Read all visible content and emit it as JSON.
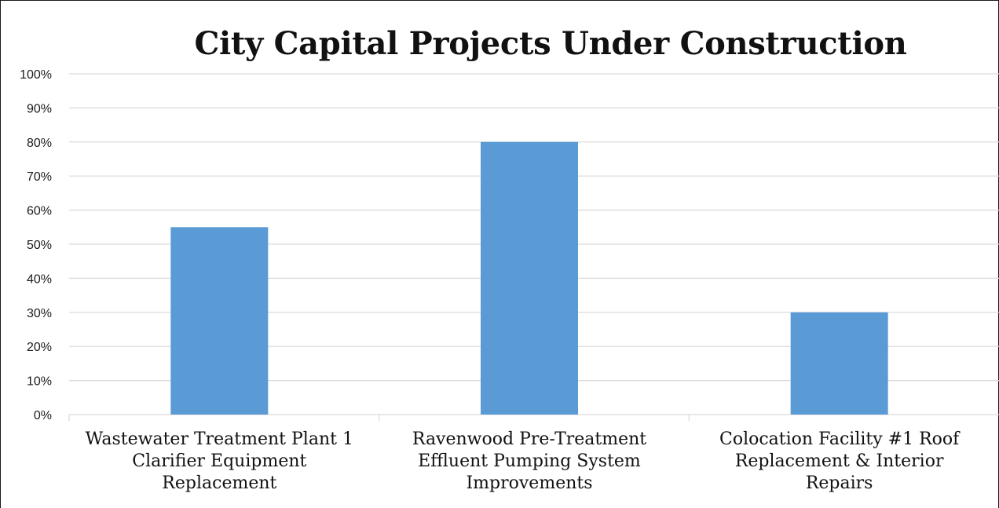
{
  "chart_data": {
    "type": "bar",
    "title": "City Capital Projects Under Construction",
    "categories": [
      "Wastewater Treatment Plant 1 Clarifier Equipment Replacement",
      "Ravenwood Pre-Treatment Effluent Pumping System Improvements",
      "Colocation Facility #1 Roof Replacement & Interior Repairs"
    ],
    "category_lines": [
      [
        "Wastewater Treatment Plant 1",
        "Clarifier Equipment",
        "Replacement"
      ],
      [
        "Ravenwood Pre-Treatment",
        "Effluent Pumping System",
        "Improvements"
      ],
      [
        "Colocation Facility #1 Roof",
        "Replacement & Interior",
        "Repairs"
      ]
    ],
    "values": [
      0.55,
      0.8,
      0.3
    ],
    "ylim": [
      0,
      1
    ],
    "yticks": [
      "0%",
      "10%",
      "20%",
      "30%",
      "40%",
      "50%",
      "60%",
      "70%",
      "80%",
      "90%",
      "100%"
    ],
    "xlabel": "",
    "ylabel": "",
    "grid": true,
    "legend": "none",
    "bar_color": "#5b9bd5",
    "grid_color": "#d9d9d9"
  }
}
